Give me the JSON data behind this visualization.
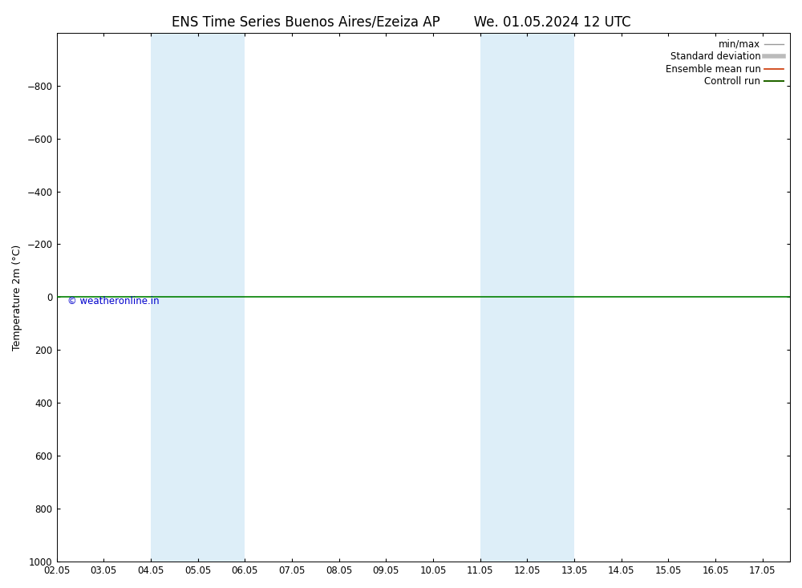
{
  "title_left": "ENS Time Series Buenos Aires/Ezeiza AP",
  "title_right": "We. 01.05.2024 12 UTC",
  "ylabel": "Temperature 2m (°C)",
  "ylim_top": -1000,
  "ylim_bottom": 1000,
  "yticks": [
    -800,
    -600,
    -400,
    -200,
    0,
    200,
    400,
    600,
    800,
    1000
  ],
  "xlim_left": 2.0,
  "xlim_right": 17.583,
  "xtick_labels": [
    "02.05",
    "03.05",
    "04.05",
    "05.05",
    "06.05",
    "07.05",
    "08.05",
    "09.05",
    "10.05",
    "11.05",
    "12.05",
    "13.05",
    "14.05",
    "15.05",
    "16.05",
    "17.05"
  ],
  "xtick_positions": [
    2,
    3,
    4,
    5,
    6,
    7,
    8,
    9,
    10,
    11,
    12,
    13,
    14,
    15,
    16,
    17
  ],
  "shaded_bands": [
    {
      "x_start": 4.0,
      "x_end": 6.0,
      "color": "#ddeef8"
    },
    {
      "x_start": 11.0,
      "x_end": 13.0,
      "color": "#ddeef8"
    }
  ],
  "hline_y": 0,
  "hline_color": "#008000",
  "hline_lw": 1.2,
  "background_color": "#ffffff",
  "plot_bg_color": "#ffffff",
  "border_color": "#000000",
  "legend_entries": [
    {
      "label": "min/max",
      "color": "#999999",
      "lw": 1.0,
      "linestyle": "-"
    },
    {
      "label": "Standard deviation",
      "color": "#bbbbbb",
      "lw": 4.0,
      "linestyle": "-"
    },
    {
      "label": "Ensemble mean run",
      "color": "#cc3300",
      "lw": 1.2,
      "linestyle": "-"
    },
    {
      "label": "Controll run",
      "color": "#226600",
      "lw": 1.5,
      "linestyle": "-"
    }
  ],
  "copyright_text": "© weatheronline.in",
  "copyright_color": "#0000cc",
  "title_fontsize": 12,
  "axis_label_fontsize": 9,
  "tick_fontsize": 8.5,
  "legend_fontsize": 8.5,
  "copyright_fontsize": 8.5
}
